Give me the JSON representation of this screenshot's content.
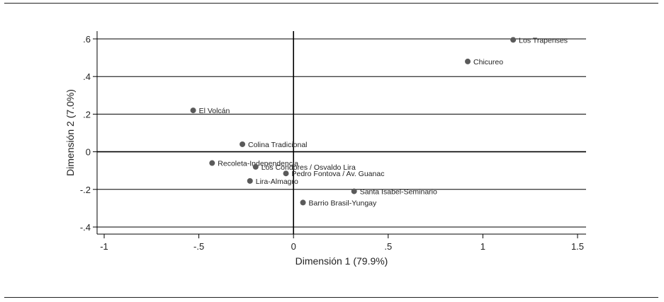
{
  "chart_data": {
    "type": "scatter",
    "title": "",
    "xlabel": "Dimensión 1 (79.9%)",
    "ylabel": "Dimensión 2 (7.0%)",
    "xlim": [
      -1,
      1.5
    ],
    "ylim": [
      -0.4,
      0.6
    ],
    "xticks": [
      -1,
      -0.5,
      0,
      0.5,
      1,
      1.5
    ],
    "xtick_labels": [
      "-1",
      "-.5",
      "0",
      ".5",
      "1",
      "1.5"
    ],
    "yticks": [
      -0.4,
      -0.2,
      0,
      0.2,
      0.4,
      0.6
    ],
    "ytick_labels": [
      "-.4",
      "-.2",
      "0",
      ".2",
      ".4",
      ".6"
    ],
    "grid": "horizontal",
    "reference_lines": {
      "x": 0,
      "y": 0
    },
    "marker_color": "#5a5a5a",
    "points": [
      {
        "label": "Los Trapenses",
        "x": 1.16,
        "y": 0.595
      },
      {
        "label": "Chicureo",
        "x": 0.92,
        "y": 0.48
      },
      {
        "label": "El Volcán",
        "x": -0.53,
        "y": 0.22
      },
      {
        "label": "Colina Tradicional",
        "x": -0.27,
        "y": 0.04
      },
      {
        "label": "Recoleta-Independencia",
        "x": -0.43,
        "y": -0.06
      },
      {
        "label": "Los Condores / Osvaldo Lira",
        "x": -0.2,
        "y": -0.08
      },
      {
        "label": "Pedro Fontova / Av. Guanac",
        "x": -0.04,
        "y": -0.115
      },
      {
        "label": "Lira-Almagro",
        "x": -0.23,
        "y": -0.155
      },
      {
        "label": "Santa Isabel-Seminario",
        "x": 0.32,
        "y": -0.21
      },
      {
        "label": "Barrio Brasil-Yungay",
        "x": 0.05,
        "y": -0.27
      }
    ]
  }
}
